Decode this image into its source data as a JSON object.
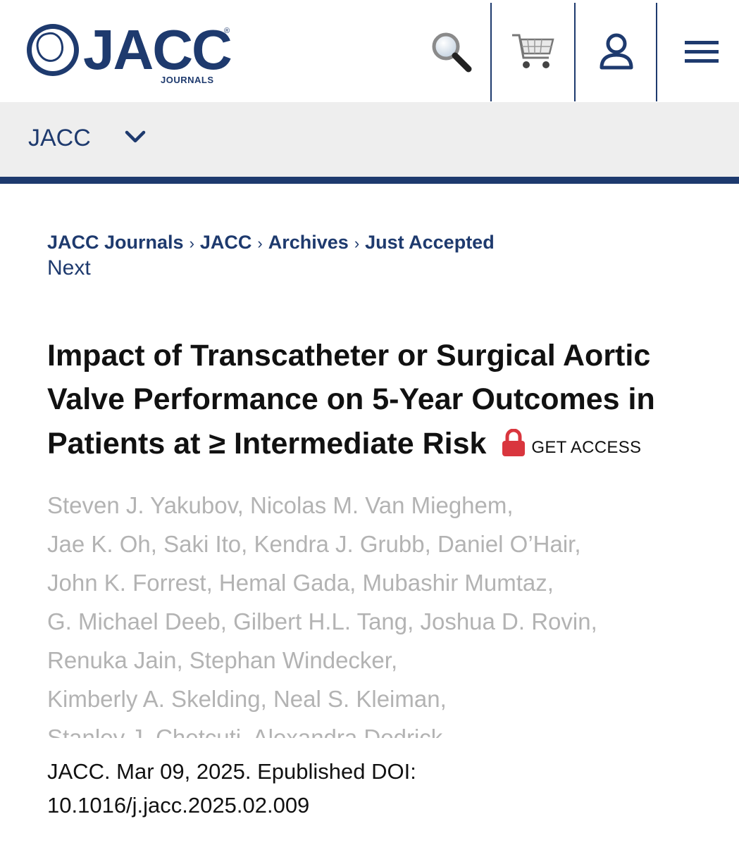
{
  "header": {
    "logo_text": "JACC",
    "logo_reg": "®",
    "logo_subtitle": "JOURNALS",
    "icons": [
      "search-icon",
      "cart-icon",
      "user-icon",
      "menu-icon"
    ],
    "colors": {
      "brand": "#1e3a6e",
      "lock": "#d9363e",
      "bar_bg": "#eeeeee",
      "authors": "#b3b3b3"
    }
  },
  "journal_selector": {
    "label": "JACC"
  },
  "breadcrumb": {
    "items": [
      "JACC Journals",
      "JACC",
      "Archives",
      "Just Accepted"
    ],
    "separator": "›",
    "next_label": "Next"
  },
  "article": {
    "title": "Impact of Transcatheter or Surgical Aortic Valve Performance on 5-Year Outcomes in Patients at ≥ Intermediate Risk",
    "access_label": "GET ACCESS",
    "author_lines": [
      "Steven J. Yakubov, Nicolas M. Van Mieghem,",
      "Jae K. Oh, Saki Ito, Kendra J. Grubb, Daniel O’Hair,",
      "John K. Forrest, Hemal Gada, Mubashir Mumtaz,",
      "G. Michael Deeb, Gilbert H.L. Tang, Joshua D. Rovin,",
      "Renuka Jain, Stephan Windecker,",
      "Kimberly A. Skelding, Neal S. Kleiman,",
      "Stanley J. Chetcuti, Alexandra Dodrick"
    ],
    "citation_line1": "JACC. Mar 09, 2025. Epublished DOI:",
    "citation_line2": "10.1016/j.jacc.2025.02.009"
  }
}
